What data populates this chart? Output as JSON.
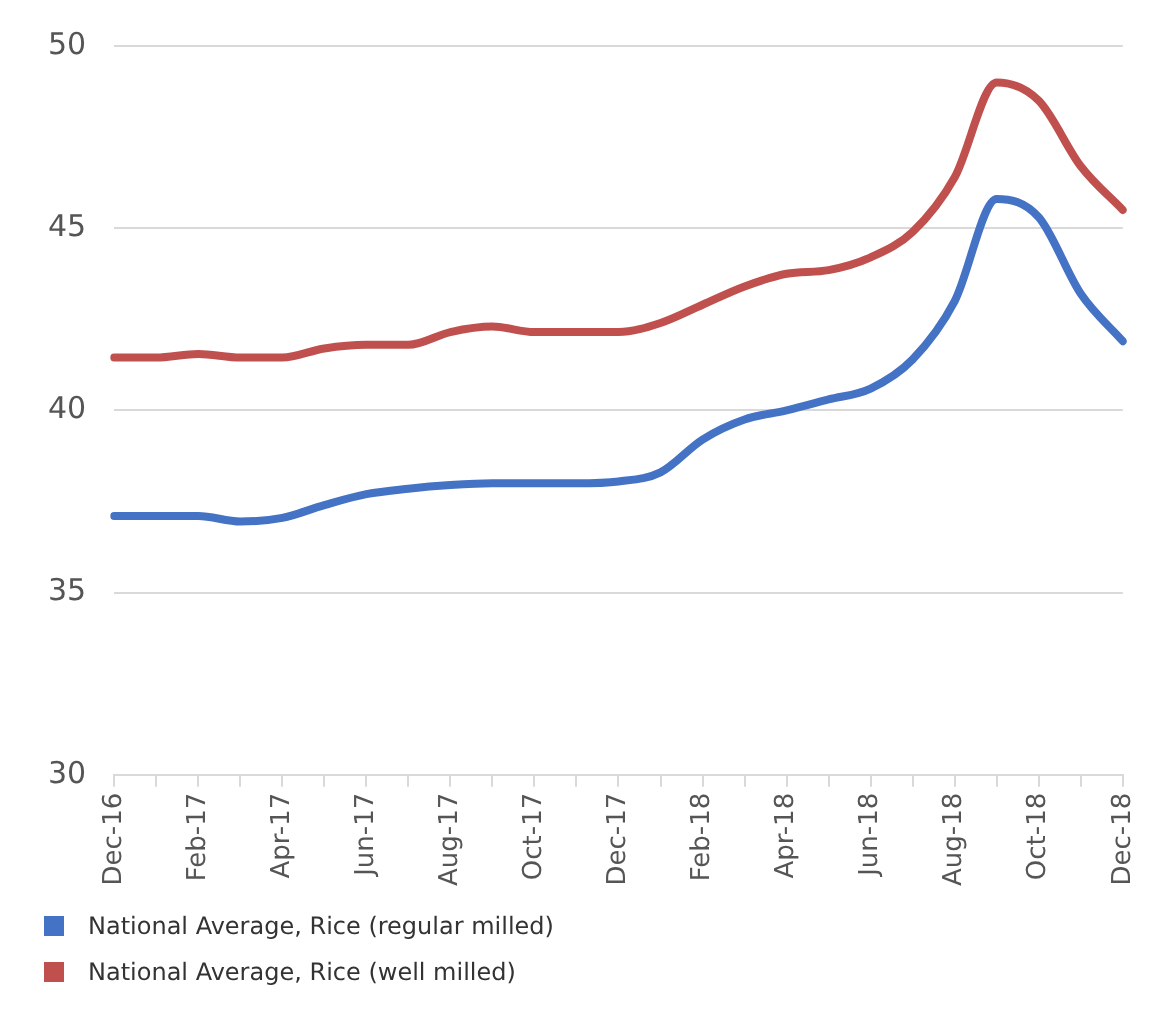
{
  "chart_data": {
    "type": "line",
    "categories": [
      "Dec-16",
      null,
      "Feb-17",
      null,
      "Apr-17",
      null,
      "Jun-17",
      null,
      "Aug-17",
      null,
      "Oct-17",
      null,
      "Dec-17",
      null,
      "Feb-18",
      null,
      "Apr-18",
      null,
      "Jun-18",
      null,
      "Aug-18",
      null,
      "Oct-18",
      null,
      "Dec-18"
    ],
    "series": [
      {
        "name": "National Average, Rice (regular milled)",
        "color": "#4472c4",
        "values": [
          37.1,
          37.1,
          37.1,
          36.95,
          37.05,
          37.4,
          37.7,
          37.85,
          37.95,
          38.0,
          38.0,
          38.0,
          38.05,
          38.3,
          39.2,
          39.75,
          40.0,
          40.3,
          40.6,
          41.4,
          43.0,
          45.8,
          45.3,
          43.2,
          41.9
        ]
      },
      {
        "name": "National Average, Rice (well milled)",
        "color": "#c0504d",
        "values": [
          41.45,
          41.45,
          41.55,
          41.45,
          41.45,
          41.7,
          41.8,
          41.8,
          42.15,
          42.3,
          42.15,
          42.15,
          42.15,
          42.4,
          42.9,
          43.4,
          43.75,
          43.85,
          44.2,
          44.9,
          46.4,
          49.0,
          48.5,
          46.7,
          45.5
        ]
      }
    ],
    "ylim": [
      30,
      50
    ],
    "yticks": [
      30,
      35,
      40,
      45,
      50
    ],
    "grid": "y",
    "legend": "bottom left",
    "marker": "none",
    "line_style": "solid"
  }
}
